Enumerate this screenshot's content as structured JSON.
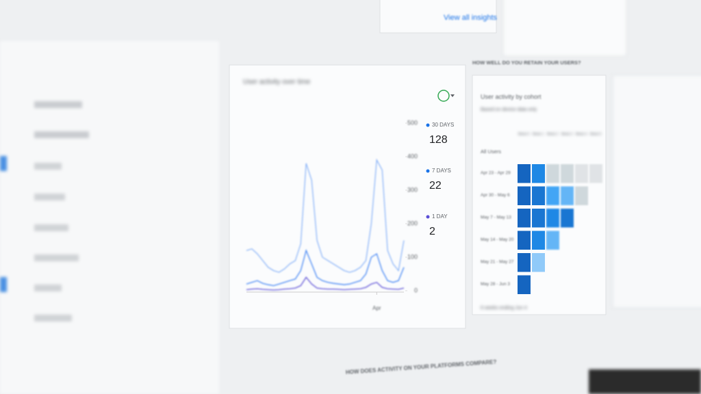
{
  "top_card": {
    "link": "View all insights"
  },
  "chart_data": {
    "type": "line",
    "title": "User activity over time",
    "categories": [
      null,
      null,
      null,
      null,
      null,
      null,
      null,
      null,
      null,
      null,
      null,
      null,
      null,
      null,
      null,
      null,
      null,
      null,
      null,
      null,
      null,
      null,
      null,
      null,
      "Apr",
      null,
      null,
      null,
      null,
      null
    ],
    "series": [
      {
        "name": "30 DAYS",
        "total": 128,
        "color": "#8ab4f8",
        "dot": "#1a73e8",
        "values": [
          120,
          125,
          110,
          90,
          70,
          60,
          55,
          65,
          80,
          90,
          140,
          380,
          330,
          150,
          100,
          90,
          80,
          70,
          60,
          55,
          60,
          70,
          90,
          200,
          390,
          360,
          120,
          80,
          60,
          150
        ]
      },
      {
        "name": "7 DAYS",
        "total": 22,
        "color": "#4285f4",
        "dot": "#1a73e8",
        "values": [
          20,
          25,
          30,
          22,
          18,
          15,
          20,
          25,
          30,
          35,
          60,
          120,
          80,
          40,
          30,
          25,
          22,
          20,
          18,
          20,
          25,
          30,
          50,
          100,
          110,
          60,
          30,
          25,
          30,
          70
        ]
      },
      {
        "name": "1 DAY",
        "total": 2,
        "color": "#5b4fd6",
        "dot": "#5b4fd6",
        "values": [
          3,
          5,
          6,
          4,
          3,
          2,
          3,
          5,
          6,
          8,
          15,
          40,
          20,
          8,
          6,
          5,
          5,
          4,
          3,
          4,
          5,
          6,
          10,
          20,
          25,
          10,
          6,
          5,
          4,
          8
        ]
      }
    ],
    "ylim": [
      0,
      500
    ],
    "yticks": [
      0,
      100,
      200,
      300,
      400,
      500
    ],
    "y_axis_side": "right"
  },
  "retention": {
    "heading": "HOW WELL DO YOU RETAIN YOUR USERS?",
    "title": "User activity by cohort",
    "subtitle": "Based on device data only",
    "columns": [
      "Week 0",
      "Week 1",
      "Week 2",
      "Week 3",
      "Week 4",
      "Week 5"
    ],
    "all_users": "All Users",
    "rows": [
      "Apr 23 - Apr 29",
      "Apr 30 - May 6",
      "May 7 - May 13",
      "May 14 - May 20",
      "May 21 - May 27",
      "May 28 - Jun 3"
    ],
    "footer": "6 weeks ending Jun 4"
  },
  "platforms": {
    "heading": "HOW DOES ACTIVITY ON YOUR PLATFORMS COMPARE?"
  }
}
